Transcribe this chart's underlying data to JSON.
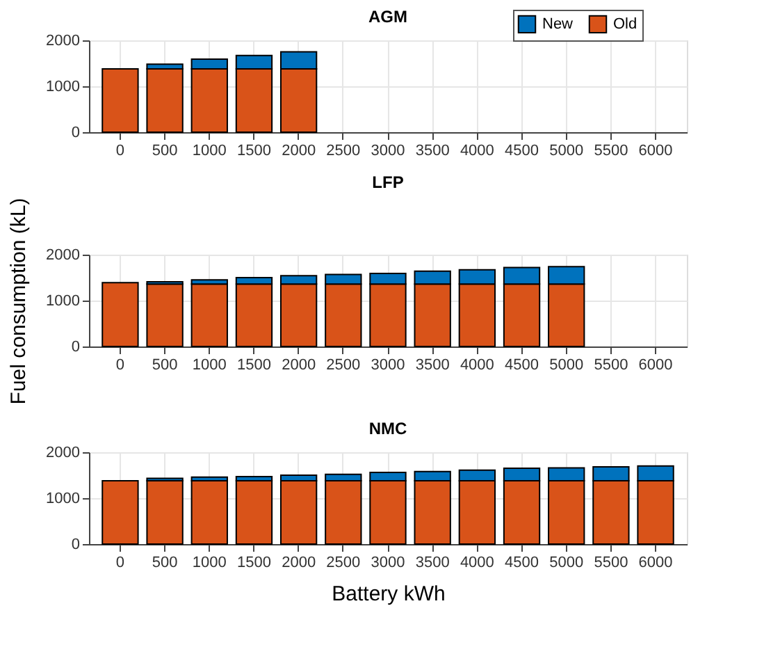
{
  "chart_data": [
    {
      "type": "bar",
      "title": "AGM",
      "stacked": true,
      "legend": "top right",
      "grid": true,
      "categories": [
        "0",
        "500",
        "1000",
        "1500",
        "2000",
        "2500",
        "3000",
        "3500",
        "4000",
        "4500",
        "5000",
        "5500",
        "6000"
      ],
      "ylim": [
        0,
        2000
      ],
      "yticks": [
        0,
        1000,
        2000
      ],
      "series": [
        {
          "name": "Old",
          "color": "#d95319",
          "values": [
            1380,
            1380,
            1380,
            1380,
            1380,
            null,
            null,
            null,
            null,
            null,
            null,
            null,
            null
          ]
        },
        {
          "name": "New",
          "color": "#0072bd",
          "values": [
            null,
            100,
            210,
            290,
            370,
            null,
            null,
            null,
            null,
            null,
            null,
            null,
            null
          ]
        }
      ]
    },
    {
      "type": "bar",
      "title": "LFP",
      "ylabel": "Fuel consumption (kL)",
      "stacked": true,
      "grid": true,
      "categories": [
        "0",
        "500",
        "1000",
        "1500",
        "2000",
        "2500",
        "3000",
        "3500",
        "4000",
        "4500",
        "5000",
        "5500",
        "6000"
      ],
      "ylim": [
        0,
        2000
      ],
      "yticks": [
        0,
        1000,
        2000
      ],
      "series": [
        {
          "name": "Old",
          "color": "#d95319",
          "values": [
            1390,
            1360,
            1360,
            1360,
            1360,
            1360,
            1360,
            1360,
            1360,
            1360,
            1360,
            null,
            null
          ]
        },
        {
          "name": "New",
          "color": "#0072bd",
          "values": [
            null,
            50,
            90,
            140,
            180,
            210,
            230,
            280,
            310,
            360,
            380,
            null,
            null
          ]
        }
      ]
    },
    {
      "type": "bar",
      "title": "NMC",
      "xlabel": "Battery kWh",
      "stacked": true,
      "grid": true,
      "categories": [
        "0",
        "500",
        "1000",
        "1500",
        "2000",
        "2500",
        "3000",
        "3500",
        "4000",
        "4500",
        "5000",
        "5500",
        "6000"
      ],
      "ylim": [
        0,
        2000
      ],
      "yticks": [
        0,
        1000,
        2000
      ],
      "series": [
        {
          "name": "Old",
          "color": "#d95319",
          "values": [
            1380,
            1380,
            1380,
            1380,
            1380,
            1380,
            1380,
            1380,
            1380,
            1380,
            1380,
            1380,
            1380
          ]
        },
        {
          "name": "New",
          "color": "#0072bd",
          "values": [
            null,
            50,
            80,
            90,
            120,
            140,
            180,
            200,
            230,
            270,
            280,
            300,
            320
          ]
        }
      ]
    }
  ]
}
